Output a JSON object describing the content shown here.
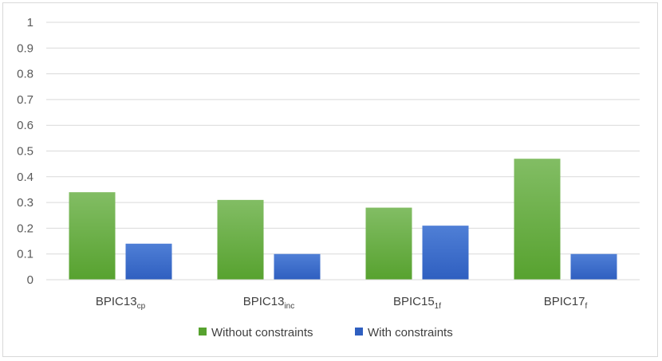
{
  "chart_data": {
    "type": "bar",
    "title": "",
    "xlabel": "",
    "ylabel": "",
    "categories": [
      {
        "base": "BPIC13",
        "sub": "cp"
      },
      {
        "base": "BPIC13",
        "sub": "inc"
      },
      {
        "base": "BPIC15",
        "sub": "1f"
      },
      {
        "base": "BPIC17",
        "sub": "f"
      }
    ],
    "series": [
      {
        "name": "Without constraints",
        "values": [
          0.34,
          0.31,
          0.28,
          0.47
        ],
        "color_top": "#82bd64",
        "color_bottom": "#57a22f"
      },
      {
        "name": "With constraints",
        "values": [
          0.14,
          0.1,
          0.21,
          0.1
        ],
        "color_top": "#4f7fd6",
        "color_bottom": "#2f5fc0"
      }
    ],
    "ylim": [
      0,
      1
    ],
    "yticks": [
      "0",
      "0.1",
      "0.2",
      "0.3",
      "0.4",
      "0.5",
      "0.6",
      "0.7",
      "0.8",
      "0.9",
      "1"
    ],
    "grid": true,
    "gridline_color": "#d9d9d9",
    "legend_position": "bottom"
  }
}
